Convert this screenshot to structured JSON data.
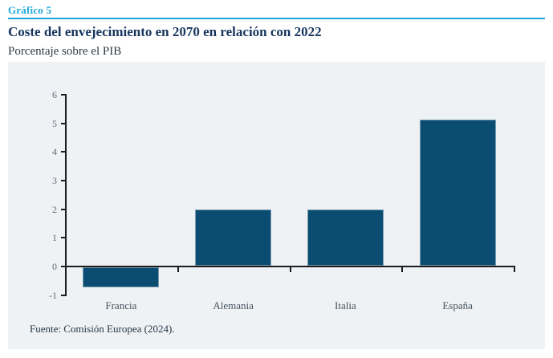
{
  "header": {
    "kicker": "Gráfico 5",
    "title": "Coste del envejecimiento en 2070 en relación con 2022",
    "subtitle": "Porcentaje sobre el PIB"
  },
  "chart_data": {
    "type": "bar",
    "categories": [
      "Francia",
      "Alemania",
      "Italia",
      "España"
    ],
    "values": [
      -0.7,
      1.95,
      1.95,
      5.1
    ],
    "title": "Coste del envejecimiento en 2070 en relación con 2022",
    "xlabel": "",
    "ylabel": "Porcentaje sobre el PIB",
    "ylim": [
      -1,
      6
    ],
    "yticks": [
      6,
      5,
      4,
      3,
      2,
      1,
      0,
      -1
    ],
    "grid": false,
    "legend": "none",
    "bar_color": "#0b4c72"
  },
  "footer": {
    "source": "Fuente: Comisión Europea (2024)."
  },
  "colors": {
    "accent_cyan": "#1ba7dc",
    "title_navy": "#17365f",
    "bar_blue": "#0b4c72",
    "panel_bg": "#eff2f4",
    "axis_dark": "#1c1c1c",
    "tick_label_gray": "#5f6b76",
    "category_label_gray": "#44525f",
    "source_text": "#253646"
  }
}
